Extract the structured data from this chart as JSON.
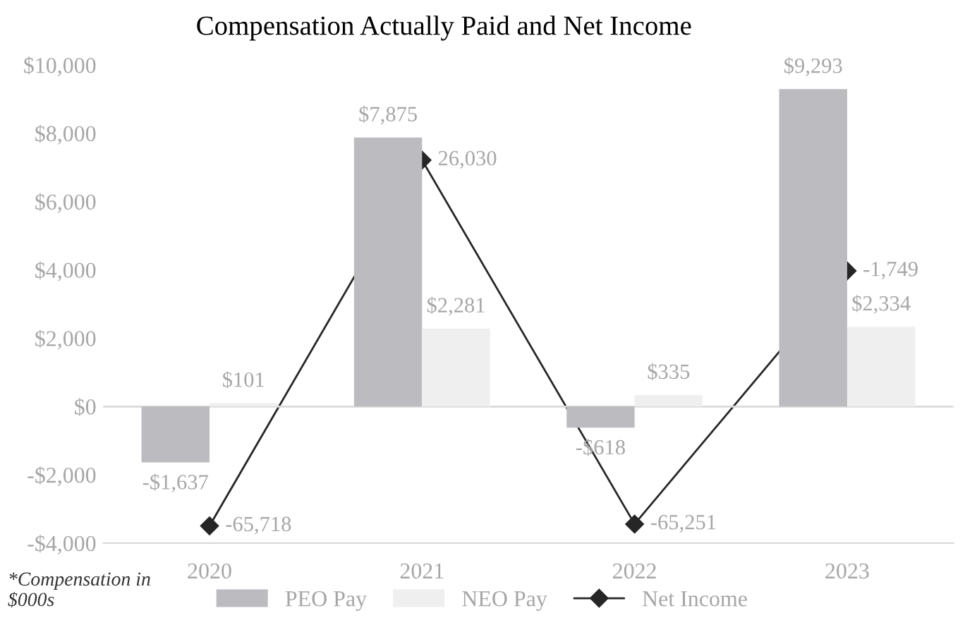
{
  "chart_data": {
    "type": "bar",
    "title": "Compensation Actually Paid and Net Income",
    "categories": [
      "2020",
      "2021",
      "2022",
      "2023"
    ],
    "series": [
      {
        "name": "PEO Pay",
        "color": "#bcbcc0",
        "values": [
          -1637,
          7875,
          -618,
          9293
        ],
        "value_labels": [
          "-$1,637",
          "$7,875",
          "-$618",
          "$9,293"
        ]
      },
      {
        "name": "NEO Pay",
        "color": "#efefef",
        "values": [
          101,
          2281,
          335,
          2334
        ],
        "value_labels": [
          "$101",
          "$2,281",
          "$335",
          "$2,334"
        ]
      },
      {
        "name": "Net Income",
        "type": "line",
        "axis": "y2",
        "color": "#262626",
        "marker": "diamond",
        "line_style": "solid",
        "values": [
          -65718,
          26030,
          -65251,
          -1749
        ],
        "value_labels": [
          "-65,718",
          "26,030",
          "-65,251",
          "-1,749"
        ]
      }
    ],
    "ylim": [
      -4000,
      10000
    ],
    "yticks": [
      {
        "value": -4000,
        "label": "-$4,000"
      },
      {
        "value": -2000,
        "label": "-$2,000"
      },
      {
        "value": 0,
        "label": "$0"
      },
      {
        "value": 2000,
        "label": "$2,000"
      },
      {
        "value": 4000,
        "label": "$4,000"
      },
      {
        "value": 6000,
        "label": "$6,000"
      },
      {
        "value": 8000,
        "label": "$8,000"
      },
      {
        "value": 10000,
        "label": "$10,000"
      }
    ],
    "ref_lines": [
      {
        "axis": "y",
        "value": 0,
        "color": "#d9d9d9"
      }
    ],
    "grid": false,
    "legend": "bottom",
    "annotations": [
      "*Compensation in $000s"
    ]
  }
}
